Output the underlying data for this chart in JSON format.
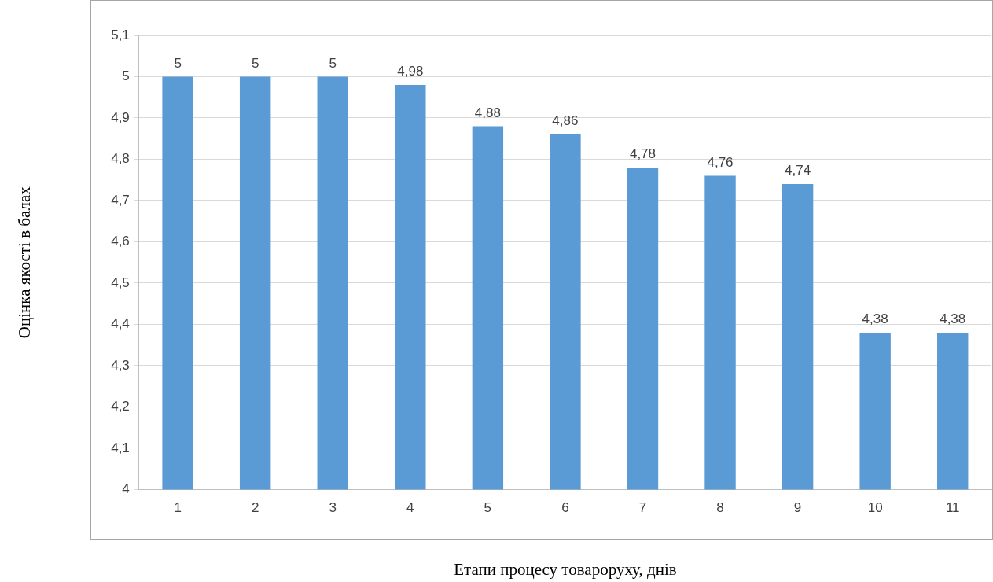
{
  "chart_data": {
    "type": "bar",
    "xlabel": "Етапи процесу товароруху, днів",
    "ylabel": "Оцінка якості в балах",
    "categories": [
      "1",
      "2",
      "3",
      "4",
      "5",
      "6",
      "7",
      "8",
      "9",
      "10",
      "11"
    ],
    "values": [
      5,
      5,
      5,
      4.98,
      4.88,
      4.86,
      4.78,
      4.76,
      4.74,
      4.38,
      4.38
    ],
    "value_labels": [
      "5",
      "5",
      "5",
      "4,98",
      "4,88",
      "4,86",
      "4,78",
      "4,76",
      "4,74",
      "4,38",
      "4,38"
    ],
    "color": "#5b9bd5",
    "ylim": [
      4,
      5.1
    ],
    "yticks": [
      {
        "value": 4,
        "label": "4"
      },
      {
        "value": 4.1,
        "label": "4,1"
      },
      {
        "value": 4.2,
        "label": "4,2"
      },
      {
        "value": 4.3,
        "label": "4,3"
      },
      {
        "value": 4.4,
        "label": "4,4"
      },
      {
        "value": 4.5,
        "label": "4,5"
      },
      {
        "value": 4.6,
        "label": "4,6"
      },
      {
        "value": 4.7,
        "label": "4,7"
      },
      {
        "value": 4.8,
        "label": "4,8"
      },
      {
        "value": 4.9,
        "label": "4,9"
      },
      {
        "value": 5,
        "label": "5"
      },
      {
        "value": 5.1,
        "label": "5,1"
      }
    ],
    "grid": "y",
    "legend": false
  }
}
